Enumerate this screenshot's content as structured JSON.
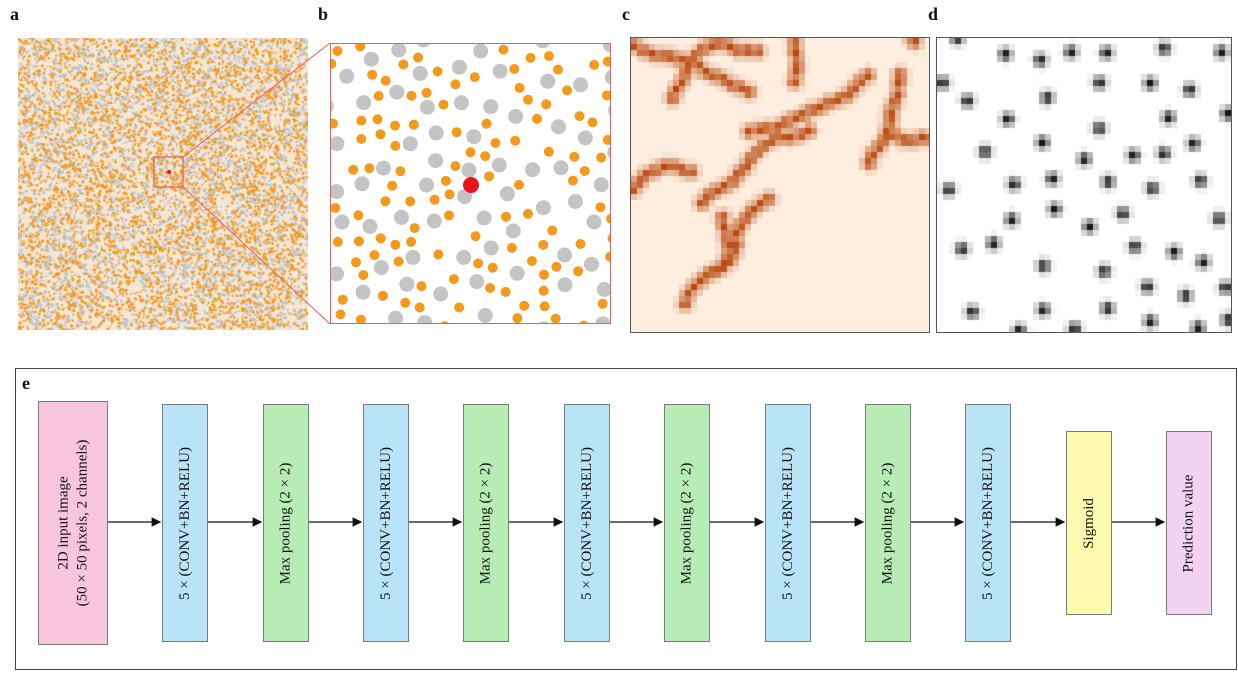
{
  "panels": {
    "a": {
      "letter": "a"
    },
    "b": {
      "letter": "b"
    },
    "c": {
      "letter": "c"
    },
    "d": {
      "letter": "d"
    },
    "e": {
      "letter": "e"
    }
  },
  "colors": {
    "orange": "#f39a1c",
    "gray": "#c4c4c4",
    "highlight": "#e8141c",
    "zoom_frame": "#e46060",
    "heat_bg": "#fdeedf",
    "heat_dark": "#b8480c",
    "input_box": "#f7c6dd",
    "conv_box": "#b9e4f7",
    "pool_box": "#b7ecb4",
    "sigmoid_box": "#fdfbb0",
    "output_box": "#f3d2f2"
  },
  "network": {
    "layers": [
      {
        "id": "input",
        "lines": [
          "2D input image",
          "(50 × 50 pixels, 2 channels)"
        ],
        "color": "#f7c6dd"
      },
      {
        "id": "conv1",
        "lines": [
          "5 × (CONV+BN+RELU)"
        ],
        "color": "#b9e4f7"
      },
      {
        "id": "pool1",
        "lines": [
          "Max pooling (2 × 2)"
        ],
        "color": "#b7ecb4"
      },
      {
        "id": "conv2",
        "lines": [
          "5 × (CONV+BN+RELU)"
        ],
        "color": "#b9e4f7"
      },
      {
        "id": "pool2",
        "lines": [
          "Max pooling (2 × 2)"
        ],
        "color": "#b7ecb4"
      },
      {
        "id": "conv3",
        "lines": [
          "5 × (CONV+BN+RELU)"
        ],
        "color": "#b9e4f7"
      },
      {
        "id": "pool3",
        "lines": [
          "Max pooling (2 × 2)"
        ],
        "color": "#b7ecb4"
      },
      {
        "id": "conv4",
        "lines": [
          "5 × (CONV+BN+RELU)"
        ],
        "color": "#b9e4f7"
      },
      {
        "id": "pool4",
        "lines": [
          "Max pooling (2 × 2)"
        ],
        "color": "#b7ecb4"
      },
      {
        "id": "conv5",
        "lines": [
          "5 × (CONV+BN+RELU)"
        ],
        "color": "#b9e4f7"
      },
      {
        "id": "sigmoid",
        "lines": [
          "Sigmoid"
        ],
        "color": "#fdfbb0"
      },
      {
        "id": "output",
        "lines": [
          "Prediction value"
        ],
        "color": "#f3d2f2"
      }
    ]
  }
}
